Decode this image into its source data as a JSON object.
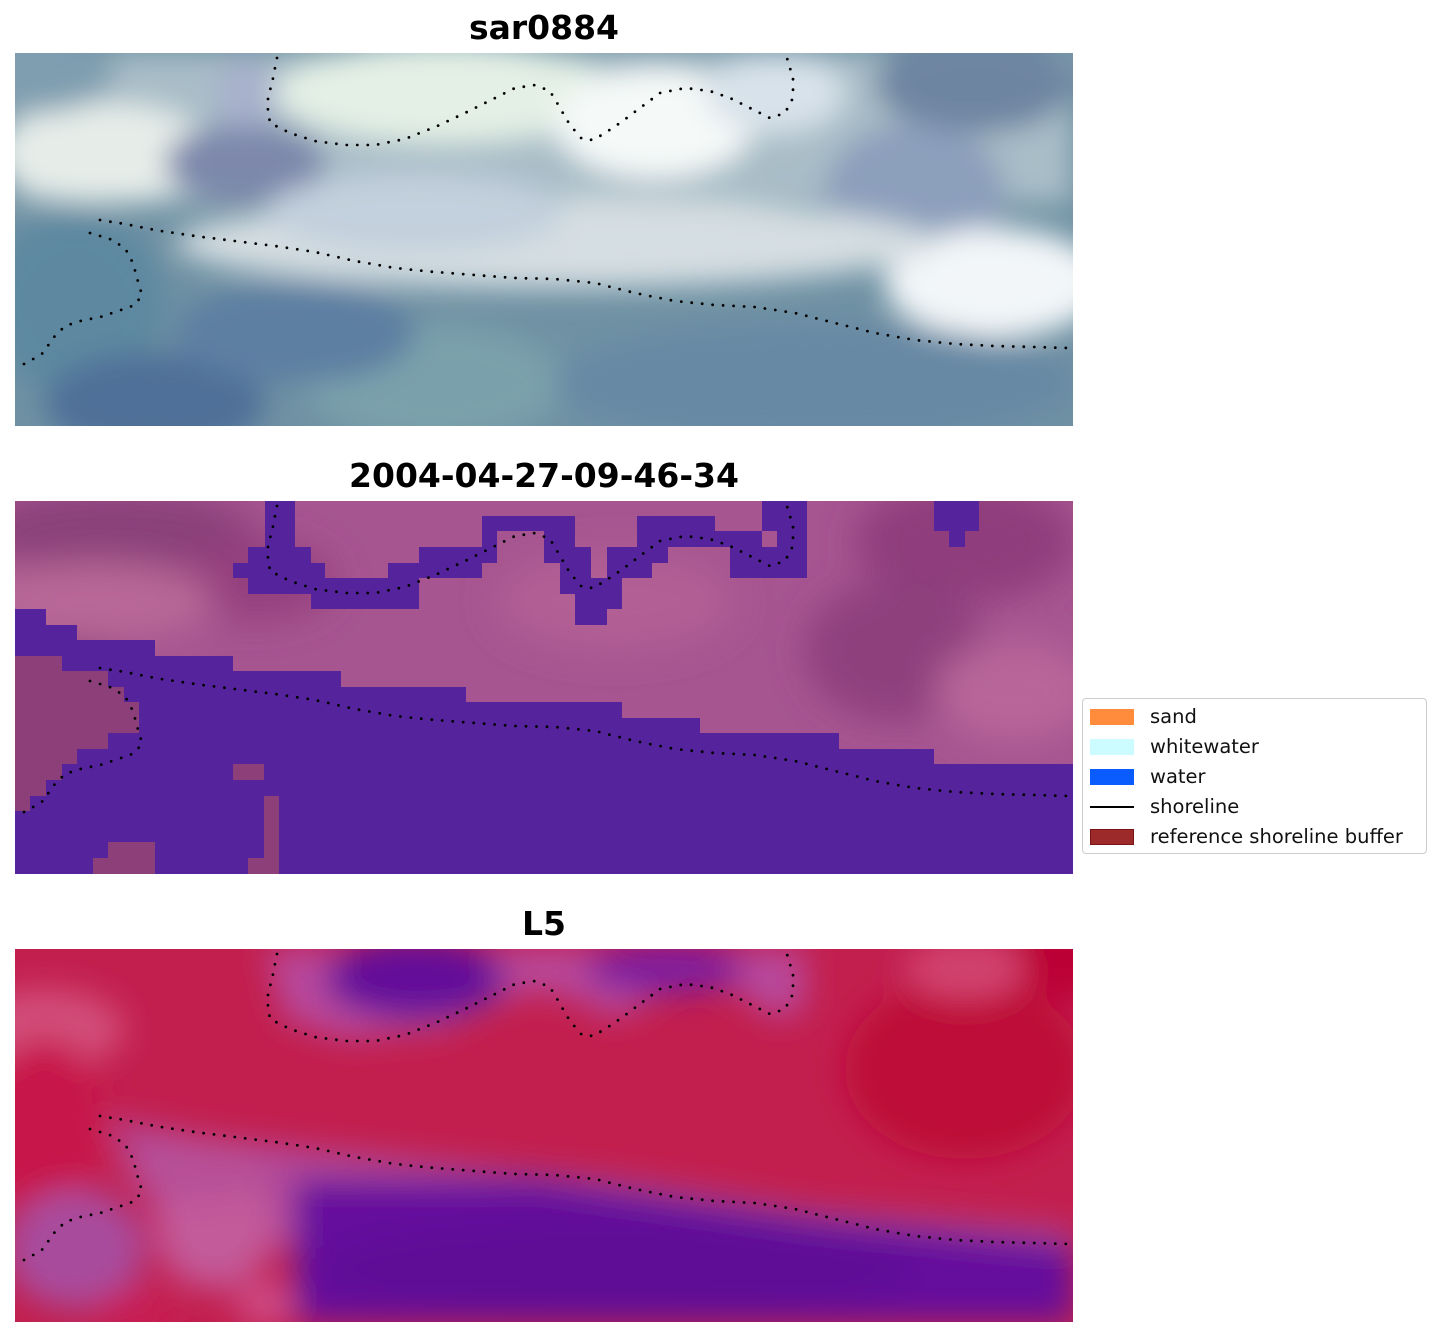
{
  "panels": [
    {
      "title": "sar0884",
      "kind": "rgb-composite"
    },
    {
      "title": "2004-04-27-09-46-34",
      "kind": "classification"
    },
    {
      "title": "L5",
      "kind": "index"
    }
  ],
  "legend": {
    "items": [
      {
        "label": "sand",
        "type": "patch",
        "color": "#ff8c3c"
      },
      {
        "label": "whitewater",
        "type": "patch",
        "color": "#ccfcff"
      },
      {
        "label": "water",
        "type": "patch",
        "color": "#0a5cff"
      },
      {
        "label": "shoreline",
        "type": "line",
        "color": "#000000"
      },
      {
        "label": "reference shoreline buffer",
        "type": "patch",
        "color": "#9c2a2a",
        "edge": "#7a1414"
      }
    ]
  },
  "colors": {
    "classification_water": "#55239b",
    "classification_land": "#a65590",
    "index_high": "#c0103a",
    "index_low": "#5e0d9a",
    "shoreline_dots": "#000000"
  }
}
